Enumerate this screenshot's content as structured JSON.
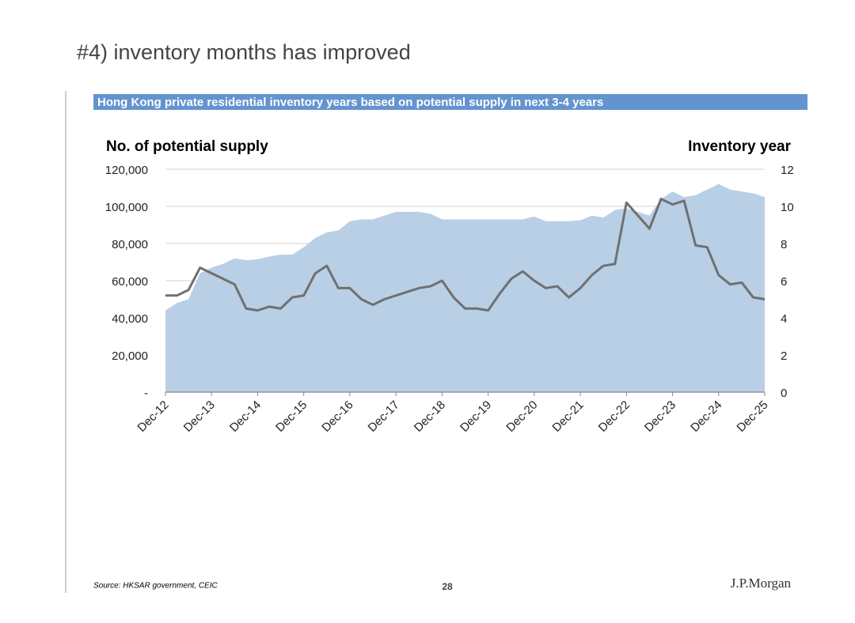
{
  "heading": "#4) inventory months has improved",
  "source": "Source: HKSAR government, CEIC",
  "page_number": "28",
  "logo": "J.P.Morgan",
  "chart_data": {
    "type": "area-line",
    "title": "Hong Kong private residential inventory years based on potential supply in next 3-4 years",
    "y_label": "No. of potential supply",
    "y2_label": "Inventory year",
    "categories": [
      "Dec-12",
      null,
      null,
      null,
      "Dec-13",
      null,
      null,
      null,
      "Dec-14",
      null,
      null,
      null,
      "Dec-15",
      null,
      null,
      null,
      "Dec-16",
      null,
      null,
      null,
      "Dec-17",
      null,
      null,
      null,
      "Dec-18",
      null,
      null,
      null,
      "Dec-19",
      null,
      null,
      null,
      "Dec-20",
      null,
      null,
      null,
      "Dec-21",
      null,
      null,
      null,
      "Dec-22",
      null,
      null,
      null,
      "Dec-23",
      null,
      null,
      null,
      "Dec-24",
      null,
      null,
      null,
      "Dec-25"
    ],
    "series": [
      {
        "color": "#b8cfe6",
        "values": [
          44000,
          48000,
          50000,
          64000,
          67000,
          69000,
          72000,
          71000,
          71500,
          73000,
          74000,
          74000,
          78000,
          83000,
          86000,
          87000,
          92000,
          93000,
          93000,
          95000,
          97000,
          97000,
          97000,
          96000,
          93000,
          93000,
          93000,
          93000,
          93000,
          93000,
          93000,
          93000,
          94500,
          92000,
          92000,
          92000,
          92500,
          95000,
          94000,
          98000,
          99000,
          97000,
          95000,
          104000,
          108000,
          105000,
          106000,
          109000,
          112000,
          109000,
          108000,
          107000,
          105000
        ]
      },
      {
        "color": "#707070",
        "axis": "y2",
        "values": [
          5.2,
          5.2,
          5.5,
          6.7,
          6.4,
          6.1,
          5.8,
          4.5,
          4.4,
          4.6,
          4.5,
          5.1,
          5.2,
          6.4,
          6.8,
          5.6,
          5.6,
          5.0,
          4.7,
          5.0,
          5.2,
          5.4,
          5.6,
          5.7,
          6.0,
          5.1,
          4.5,
          4.5,
          4.4,
          5.3,
          6.1,
          6.5,
          6.0,
          5.6,
          5.7,
          5.1,
          5.6,
          6.3,
          6.8,
          6.9,
          10.2,
          9.5,
          8.8,
          10.4,
          10.1,
          10.3,
          7.9,
          7.8,
          6.3,
          5.8,
          5.9,
          5.1,
          5.0
        ]
      }
    ],
    "ylim": [
      0,
      120000
    ],
    "yticks": [
      {
        "value": 0,
        "label": "-"
      },
      {
        "value": 20000,
        "label": "20,000"
      },
      {
        "value": 40000,
        "label": "40,000"
      },
      {
        "value": 60000,
        "label": "60,000"
      },
      {
        "value": 80000,
        "label": "80,000"
      },
      {
        "value": 100000,
        "label": "100,000"
      },
      {
        "value": 120000,
        "label": "120,000"
      }
    ],
    "y2lim": [
      0,
      12
    ],
    "y2ticks": [
      0,
      2,
      4,
      6,
      8,
      10,
      12
    ],
    "grid": true
  }
}
